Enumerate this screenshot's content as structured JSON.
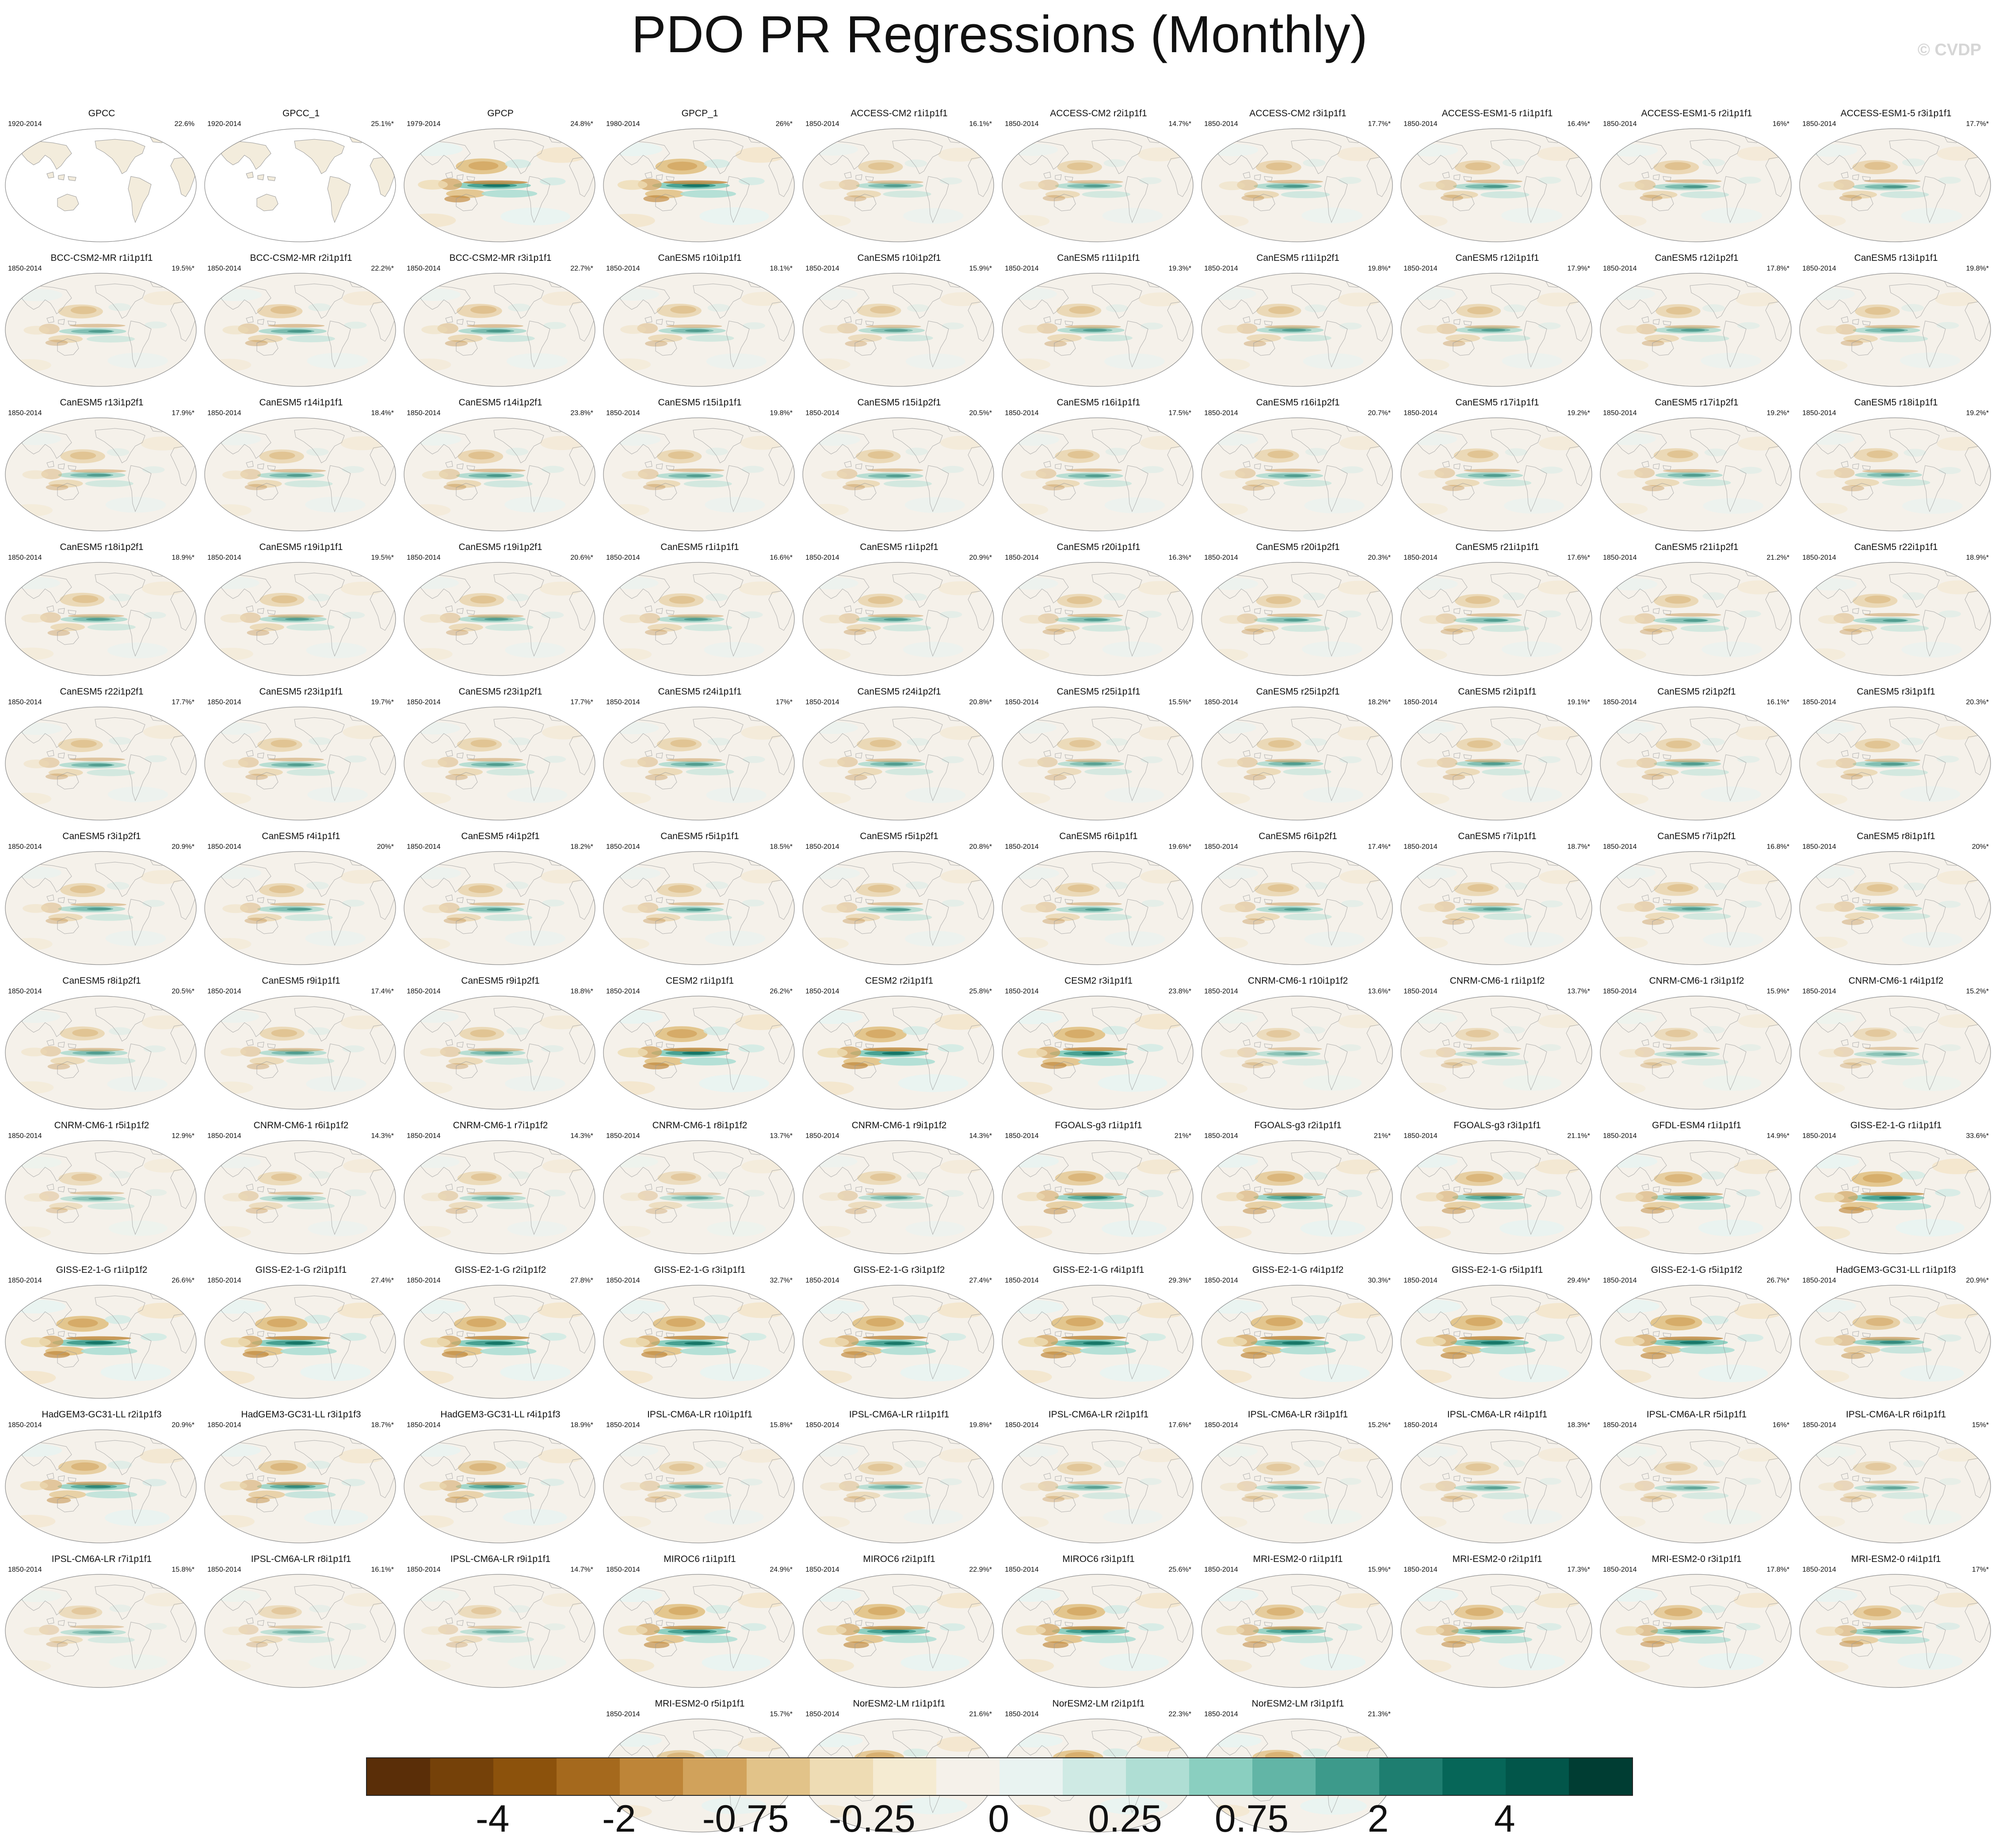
{
  "figure": {
    "title": "PDO PR Regressions (Monthly)",
    "watermark": "© CVDP"
  },
  "chart_data": {
    "type": "heatmap",
    "description_kind": "small-multiple global map regressions",
    "panels": [
      {
        "title": "GPCC",
        "period": "1920-2014",
        "pct": "22.6%",
        "mask": "land"
      },
      {
        "title": "GPCC_1",
        "period": "1920-2014",
        "pct": "25.1%*",
        "mask": "land"
      },
      {
        "title": "GPCP",
        "period": "1979-2014",
        "pct": "24.8%*",
        "amp": 1.3
      },
      {
        "title": "GPCP_1",
        "period": "1980-2014",
        "pct": "26%*",
        "amp": 1.3
      },
      {
        "title": "ACCESS-CM2 r1i1p1f1",
        "period": "1850-2014",
        "pct": "16.1%*",
        "amp": 0.7
      },
      {
        "title": "ACCESS-CM2 r2i1p1f1",
        "period": "1850-2014",
        "pct": "14.7%*",
        "amp": 0.7
      },
      {
        "title": "ACCESS-CM2 r3i1p1f1",
        "period": "1850-2014",
        "pct": "17.7%*",
        "amp": 0.75
      },
      {
        "title": "ACCESS-ESM1-5 r1i1p1f1",
        "period": "1850-2014",
        "pct": "16.4%*",
        "amp": 0.75
      },
      {
        "title": "ACCESS-ESM1-5 r2i1p1f1",
        "period": "1850-2014",
        "pct": "16%*",
        "amp": 0.75
      },
      {
        "title": "ACCESS-ESM1-5 r3i1p1f1",
        "period": "1850-2014",
        "pct": "17.7%*",
        "amp": 0.75
      },
      {
        "title": "BCC-CSM2-MR r1i1p1f1",
        "period": "1850-2014",
        "pct": "19.5%*",
        "amp": 0.7
      },
      {
        "title": "BCC-CSM2-MR r2i1p1f1",
        "period": "1850-2014",
        "pct": "22.2%*",
        "amp": 0.75
      },
      {
        "title": "BCC-CSM2-MR r3i1p1f1",
        "period": "1850-2014",
        "pct": "22.7%*",
        "amp": 0.75
      },
      {
        "title": "CanESM5 r10i1p1f1",
        "period": "1850-2014",
        "pct": "18.1%*",
        "amp": 0.7
      },
      {
        "title": "CanESM5 r10i1p2f1",
        "period": "1850-2014",
        "pct": "15.9%*",
        "amp": 0.65
      },
      {
        "title": "CanESM5 r11i1p1f1",
        "period": "1850-2014",
        "pct": "19.3%*",
        "amp": 0.7
      },
      {
        "title": "CanESM5 r11i1p2f1",
        "period": "1850-2014",
        "pct": "19.8%*",
        "amp": 0.7
      },
      {
        "title": "CanESM5 r12i1p1f1",
        "period": "1850-2014",
        "pct": "17.9%*",
        "amp": 0.7
      },
      {
        "title": "CanESM5 r12i1p2f1",
        "period": "1850-2014",
        "pct": "17.8%*",
        "amp": 0.7
      },
      {
        "title": "CanESM5 r13i1p1f1",
        "period": "1850-2014",
        "pct": "19.8%*",
        "amp": 0.7
      },
      {
        "title": "CanESM5 r13i1p2f1",
        "period": "1850-2014",
        "pct": "17.9%*",
        "amp": 0.7
      },
      {
        "title": "CanESM5 r14i1p1f1",
        "period": "1850-2014",
        "pct": "18.4%*",
        "amp": 0.7
      },
      {
        "title": "CanESM5 r14i1p2f1",
        "period": "1850-2014",
        "pct": "23.8%*",
        "amp": 0.75
      },
      {
        "title": "CanESM5 r15i1p1f1",
        "period": "1850-2014",
        "pct": "19.8%*",
        "amp": 0.7
      },
      {
        "title": "CanESM5 r15i1p2f1",
        "period": "1850-2014",
        "pct": "20.5%*",
        "amp": 0.7
      },
      {
        "title": "CanESM5 r16i1p1f1",
        "period": "1850-2014",
        "pct": "17.5%*",
        "amp": 0.7
      },
      {
        "title": "CanESM5 r16i1p2f1",
        "period": "1850-2014",
        "pct": "20.7%*",
        "amp": 0.7
      },
      {
        "title": "CanESM5 r17i1p1f1",
        "period": "1850-2014",
        "pct": "19.2%*",
        "amp": 0.7
      },
      {
        "title": "CanESM5 r17i1p2f1",
        "period": "1850-2014",
        "pct": "19.2%*",
        "amp": 0.7
      },
      {
        "title": "CanESM5 r18i1p1f1",
        "period": "1850-2014",
        "pct": "19.2%*",
        "amp": 0.7
      },
      {
        "title": "CanESM5 r18i1p2f1",
        "period": "1850-2014",
        "pct": "18.9%*",
        "amp": 0.7
      },
      {
        "title": "CanESM5 r19i1p1f1",
        "period": "1850-2014",
        "pct": "19.5%*",
        "amp": 0.7
      },
      {
        "title": "CanESM5 r19i1p2f1",
        "period": "1850-2014",
        "pct": "20.6%*",
        "amp": 0.7
      },
      {
        "title": "CanESM5 r1i1p1f1",
        "period": "1850-2014",
        "pct": "16.6%*",
        "amp": 0.7
      },
      {
        "title": "CanESM5 r1i1p2f1",
        "period": "1850-2014",
        "pct": "20.9%*",
        "amp": 0.7
      },
      {
        "title": "CanESM5 r20i1p1f1",
        "period": "1850-2014",
        "pct": "16.3%*",
        "amp": 0.7
      },
      {
        "title": "CanESM5 r20i1p2f1",
        "period": "1850-2014",
        "pct": "20.3%*",
        "amp": 0.7
      },
      {
        "title": "CanESM5 r21i1p1f1",
        "period": "1850-2014",
        "pct": "17.6%*",
        "amp": 0.7
      },
      {
        "title": "CanESM5 r21i1p2f1",
        "period": "1850-2014",
        "pct": "21.2%*",
        "amp": 0.7
      },
      {
        "title": "CanESM5 r22i1p1f1",
        "period": "1850-2014",
        "pct": "18.9%*",
        "amp": 0.7
      },
      {
        "title": "CanESM5 r22i1p2f1",
        "period": "1850-2014",
        "pct": "17.7%*",
        "amp": 0.7
      },
      {
        "title": "CanESM5 r23i1p1f1",
        "period": "1850-2014",
        "pct": "19.7%*",
        "amp": 0.7
      },
      {
        "title": "CanESM5 r23i1p2f1",
        "period": "1850-2014",
        "pct": "17.7%*",
        "amp": 0.7
      },
      {
        "title": "CanESM5 r24i1p1f1",
        "period": "1850-2014",
        "pct": "17%*",
        "amp": 0.7
      },
      {
        "title": "CanESM5 r24i1p2f1",
        "period": "1850-2014",
        "pct": "20.8%*",
        "amp": 0.7
      },
      {
        "title": "CanESM5 r25i1p1f1",
        "period": "1850-2014",
        "pct": "15.5%*",
        "amp": 0.65
      },
      {
        "title": "CanESM5 r25i1p2f1",
        "period": "1850-2014",
        "pct": "18.2%*",
        "amp": 0.7
      },
      {
        "title": "CanESM5 r2i1p1f1",
        "period": "1850-2014",
        "pct": "19.1%*",
        "amp": 0.7
      },
      {
        "title": "CanESM5 r2i1p2f1",
        "period": "1850-2014",
        "pct": "16.1%*",
        "amp": 0.7
      },
      {
        "title": "CanESM5 r3i1p1f1",
        "period": "1850-2014",
        "pct": "20.3%*",
        "amp": 0.7
      },
      {
        "title": "CanESM5 r3i1p2f1",
        "period": "1850-2014",
        "pct": "20.9%*",
        "amp": 0.7
      },
      {
        "title": "CanESM5 r4i1p1f1",
        "period": "1850-2014",
        "pct": "20%*",
        "amp": 0.7
      },
      {
        "title": "CanESM5 r4i1p2f1",
        "period": "1850-2014",
        "pct": "18.2%*",
        "amp": 0.7
      },
      {
        "title": "CanESM5 r5i1p1f1",
        "period": "1850-2014",
        "pct": "18.5%*",
        "amp": 0.7
      },
      {
        "title": "CanESM5 r5i1p2f1",
        "period": "1850-2014",
        "pct": "20.8%*",
        "amp": 0.7
      },
      {
        "title": "CanESM5 r6i1p1f1",
        "period": "1850-2014",
        "pct": "19.6%*",
        "amp": 0.7
      },
      {
        "title": "CanESM5 r6i1p2f1",
        "period": "1850-2014",
        "pct": "17.4%*",
        "amp": 0.7
      },
      {
        "title": "CanESM5 r7i1p1f1",
        "period": "1850-2014",
        "pct": "18.7%*",
        "amp": 0.7
      },
      {
        "title": "CanESM5 r7i1p2f1",
        "period": "1850-2014",
        "pct": "16.8%*",
        "amp": 0.7
      },
      {
        "title": "CanESM5 r8i1p1f1",
        "period": "1850-2014",
        "pct": "20%*",
        "amp": 0.7
      },
      {
        "title": "CanESM5 r8i1p2f1",
        "period": "1850-2014",
        "pct": "20.5%*",
        "amp": 0.7
      },
      {
        "title": "CanESM5 r9i1p1f1",
        "period": "1850-2014",
        "pct": "17.4%*",
        "amp": 0.7
      },
      {
        "title": "CanESM5 r9i1p2f1",
        "period": "1850-2014",
        "pct": "18.8%*",
        "amp": 0.7
      },
      {
        "title": "CESM2 r1i1p1f1",
        "period": "1850-2014",
        "pct": "26.2%*",
        "amp": 1.35
      },
      {
        "title": "CESM2 r2i1p1f1",
        "period": "1850-2014",
        "pct": "25.8%*",
        "amp": 1.35
      },
      {
        "title": "CESM2 r3i1p1f1",
        "period": "1850-2014",
        "pct": "23.8%*",
        "amp": 1.3
      },
      {
        "title": "CNRM-CM6-1 r10i1p1f2",
        "period": "1850-2014",
        "pct": "13.6%*",
        "amp": 0.6
      },
      {
        "title": "CNRM-CM6-1 r1i1p1f2",
        "period": "1850-2014",
        "pct": "13.7%*",
        "amp": 0.6
      },
      {
        "title": "CNRM-CM6-1 r3i1p1f2",
        "period": "1850-2014",
        "pct": "15.9%*",
        "amp": 0.6
      },
      {
        "title": "CNRM-CM6-1 r4i1p1f2",
        "period": "1850-2014",
        "pct": "15.2%*",
        "amp": 0.6
      },
      {
        "title": "CNRM-CM6-1 r5i1p1f2",
        "period": "1850-2014",
        "pct": "12.9%*",
        "amp": 0.6
      },
      {
        "title": "CNRM-CM6-1 r6i1p1f2",
        "period": "1850-2014",
        "pct": "14.3%*",
        "amp": 0.65
      },
      {
        "title": "CNRM-CM6-1 r7i1p1f2",
        "period": "1850-2014",
        "pct": "14.3%*",
        "amp": 0.65
      },
      {
        "title": "CNRM-CM6-1 r8i1p1f2",
        "period": "1850-2014",
        "pct": "13.7%*",
        "amp": 0.6
      },
      {
        "title": "CNRM-CM6-1 r9i1p1f2",
        "period": "1850-2014",
        "pct": "14.3%*",
        "amp": 0.65
      },
      {
        "title": "FGOALS-g3 r1i1p1f1",
        "period": "1850-2014",
        "pct": "21%*",
        "amp": 1.0
      },
      {
        "title": "FGOALS-g3 r2i1p1f1",
        "period": "1850-2014",
        "pct": "21%*",
        "amp": 1.0
      },
      {
        "title": "FGOALS-g3 r3i1p1f1",
        "period": "1850-2014",
        "pct": "21.1%*",
        "amp": 1.0
      },
      {
        "title": "GFDL-ESM4 r1i1p1f1",
        "period": "1850-2014",
        "pct": "14.9%*",
        "amp": 1.0
      },
      {
        "title": "GISS-E2-1-G r1i1p1f1",
        "period": "1850-2014",
        "pct": "33.6%*",
        "amp": 1.25
      },
      {
        "title": "GISS-E2-1-G r1i1p1f2",
        "period": "1850-2014",
        "pct": "26.6%*",
        "amp": 1.35
      },
      {
        "title": "GISS-E2-1-G r2i1p1f1",
        "period": "1850-2014",
        "pct": "27.4%*",
        "amp": 1.35
      },
      {
        "title": "GISS-E2-1-G r2i1p1f2",
        "period": "1850-2014",
        "pct": "27.8%*",
        "amp": 1.35
      },
      {
        "title": "GISS-E2-1-G r3i1p1f1",
        "period": "1850-2014",
        "pct": "32.7%*",
        "amp": 1.35
      },
      {
        "title": "GISS-E2-1-G r3i1p1f2",
        "period": "1850-2014",
        "pct": "27.4%*",
        "amp": 1.3
      },
      {
        "title": "GISS-E2-1-G r4i1p1f1",
        "period": "1850-2014",
        "pct": "29.3%*",
        "amp": 1.35
      },
      {
        "title": "GISS-E2-1-G r4i1p1f2",
        "period": "1850-2014",
        "pct": "30.3%*",
        "amp": 1.35
      },
      {
        "title": "GISS-E2-1-G r5i1p1f1",
        "period": "1850-2014",
        "pct": "29.4%*",
        "amp": 1.35
      },
      {
        "title": "GISS-E2-1-G r5i1p1f2",
        "period": "1850-2014",
        "pct": "26.7%*",
        "amp": 1.3
      },
      {
        "title": "HadGEM3-GC31-LL r1i1p1f3",
        "period": "1850-2014",
        "pct": "20.9%*",
        "amp": 0.95
      },
      {
        "title": "HadGEM3-GC31-LL r2i1p1f3",
        "period": "1850-2014",
        "pct": "20.9%*",
        "amp": 1.0
      },
      {
        "title": "HadGEM3-GC31-LL r3i1p1f3",
        "period": "1850-2014",
        "pct": "18.7%*",
        "amp": 0.95
      },
      {
        "title": "HadGEM3-GC31-LL r4i1p1f3",
        "period": "1850-2014",
        "pct": "18.9%*",
        "amp": 0.95
      },
      {
        "title": "IPSL-CM6A-LR r10i1p1f1",
        "period": "1850-2014",
        "pct": "15.8%*",
        "amp": 0.65
      },
      {
        "title": "IPSL-CM6A-LR r1i1p1f1",
        "period": "1850-2014",
        "pct": "19.8%*",
        "amp": 0.65
      },
      {
        "title": "IPSL-CM6A-LR r2i1p1f1",
        "period": "1850-2014",
        "pct": "17.6%*",
        "amp": 0.65
      },
      {
        "title": "IPSL-CM6A-LR r3i1p1f1",
        "period": "1850-2014",
        "pct": "15.2%*",
        "amp": 0.6
      },
      {
        "title": "IPSL-CM6A-LR r4i1p1f1",
        "period": "1850-2014",
        "pct": "18.3%*",
        "amp": 0.65
      },
      {
        "title": "IPSL-CM6A-LR r5i1p1f1",
        "period": "1850-2014",
        "pct": "16%*",
        "amp": 0.6
      },
      {
        "title": "IPSL-CM6A-LR r6i1p1f1",
        "period": "1850-2014",
        "pct": "15%*",
        "amp": 0.6
      },
      {
        "title": "IPSL-CM6A-LR r7i1p1f1",
        "period": "1850-2014",
        "pct": "15.8%*",
        "amp": 0.6
      },
      {
        "title": "IPSL-CM6A-LR r8i1p1f1",
        "period": "1850-2014",
        "pct": "16.1%*",
        "amp": 0.6
      },
      {
        "title": "IPSL-CM6A-LR r9i1p1f1",
        "period": "1850-2014",
        "pct": "14.7%*",
        "amp": 0.6
      },
      {
        "title": "MIROC6 r1i1p1f1",
        "period": "1850-2014",
        "pct": "24.9%*",
        "amp": 1.25
      },
      {
        "title": "MIROC6 r2i1p1f1",
        "period": "1850-2014",
        "pct": "22.9%*",
        "amp": 1.25
      },
      {
        "title": "MIROC6 r3i1p1f1",
        "period": "1850-2014",
        "pct": "25.6%*",
        "amp": 1.3
      },
      {
        "title": "MRI-ESM2-0 r1i1p1f1",
        "period": "1850-2014",
        "pct": "15.9%*",
        "amp": 1.05
      },
      {
        "title": "MRI-ESM2-0 r2i1p1f1",
        "period": "1850-2014",
        "pct": "17.3%*",
        "amp": 1.1
      },
      {
        "title": "MRI-ESM2-0 r3i1p1f1",
        "period": "1850-2014",
        "pct": "17.8%*",
        "amp": 1.05
      },
      {
        "title": "MRI-ESM2-0 r4i1p1f1",
        "period": "1850-2014",
        "pct": "17%*",
        "amp": 1.0
      },
      {
        "title": "MRI-ESM2-0 r5i1p1f1",
        "period": "1850-2014",
        "pct": "15.7%*",
        "amp": 1.0
      },
      {
        "title": "NorESM2-LM r1i1p1f1",
        "period": "1850-2014",
        "pct": "21.6%*",
        "amp": 1.15
      },
      {
        "title": "NorESM2-LM r2i1p1f1",
        "period": "1850-2014",
        "pct": "22.3%*",
        "amp": 1.2
      },
      {
        "title": "NorESM2-LM r3i1p1f1",
        "period": "1850-2014",
        "pct": "21.3%*",
        "amp": 1.1
      }
    ],
    "colorbar": {
      "colors": [
        "#5a2e08",
        "#754109",
        "#8c520c",
        "#a5691d",
        "#be8538",
        "#d1a25b",
        "#e2c389",
        "#eedcb4",
        "#f5ebd2",
        "#f5f1ea",
        "#e9f3f1",
        "#cfeae4",
        "#afded4",
        "#8acfc0",
        "#62b5a6",
        "#3d9a8b",
        "#1e7e70",
        "#066658",
        "#02564a",
        "#003d33"
      ],
      "tick_labels": [
        "-4",
        "-2",
        "-0.75",
        "-0.25",
        "0",
        "0.25",
        "0.75",
        "2",
        "4"
      ]
    }
  }
}
